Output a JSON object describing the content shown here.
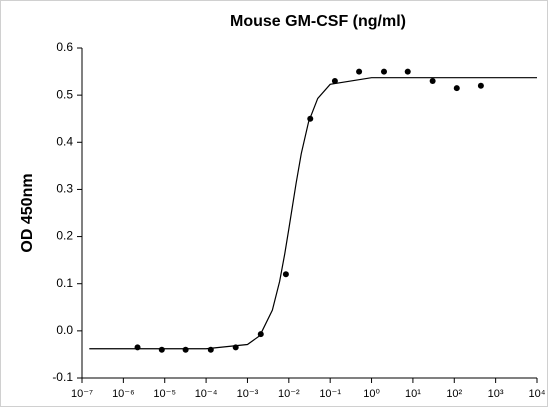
{
  "chart_data": {
    "type": "scatter",
    "title": "Mouse GM-CSF (ng/ml)",
    "y_label": "OD 450nm",
    "x_scale": "log",
    "xlim": [
      1e-07,
      10000
    ],
    "ylim": [
      -0.1,
      0.6
    ],
    "xticks": [
      {
        "value": 1e-07,
        "label": "10⁻⁷"
      },
      {
        "value": 1e-06,
        "label": "10⁻⁶"
      },
      {
        "value": 1e-05,
        "label": "10⁻⁵"
      },
      {
        "value": 0.0001,
        "label": "10⁻⁴"
      },
      {
        "value": 0.001,
        "label": "10⁻³"
      },
      {
        "value": 0.01,
        "label": "10⁻²"
      },
      {
        "value": 0.1,
        "label": "10⁻¹"
      },
      {
        "value": 1,
        "label": "10⁰"
      },
      {
        "value": 10,
        "label": "10¹"
      },
      {
        "value": 100,
        "label": "10²"
      },
      {
        "value": 1000,
        "label": "10³"
      },
      {
        "value": 10000,
        "label": "10⁴"
      }
    ],
    "yticks": [
      0.6,
      0.5,
      0.4,
      0.3,
      0.2,
      0.1,
      {
        "value": 0,
        "label": "0.0"
      },
      -0.1
    ],
    "grid": false,
    "series": [
      {
        "mode": "markers",
        "color": "#000000",
        "x": [
          2.2e-06,
          8.5e-06,
          3.2e-05,
          0.00013,
          0.00052,
          0.0021,
          0.0085,
          0.033,
          0.13,
          0.5,
          2,
          7.5,
          30,
          115,
          440
        ],
        "values": [
          -0.035,
          -0.04,
          -0.04,
          -0.04,
          -0.035,
          -0.007,
          0.12,
          0.45,
          0.53,
          0.55,
          0.55,
          0.55,
          0.53,
          0.515,
          0.52
        ]
      },
      {
        "mode": "line",
        "color": "#000000",
        "x": [
          1.5e-07,
          1e-06,
          0.0001,
          0.001,
          0.002,
          0.004,
          0.006,
          0.008,
          0.01,
          0.015,
          0.02,
          0.03,
          0.05,
          0.1,
          1,
          10000
        ],
        "values": [
          -0.038,
          -0.038,
          -0.038,
          -0.029,
          -0.01,
          0.044,
          0.105,
          0.164,
          0.216,
          0.313,
          0.376,
          0.443,
          0.493,
          0.523,
          0.537,
          0.537
        ]
      }
    ]
  }
}
